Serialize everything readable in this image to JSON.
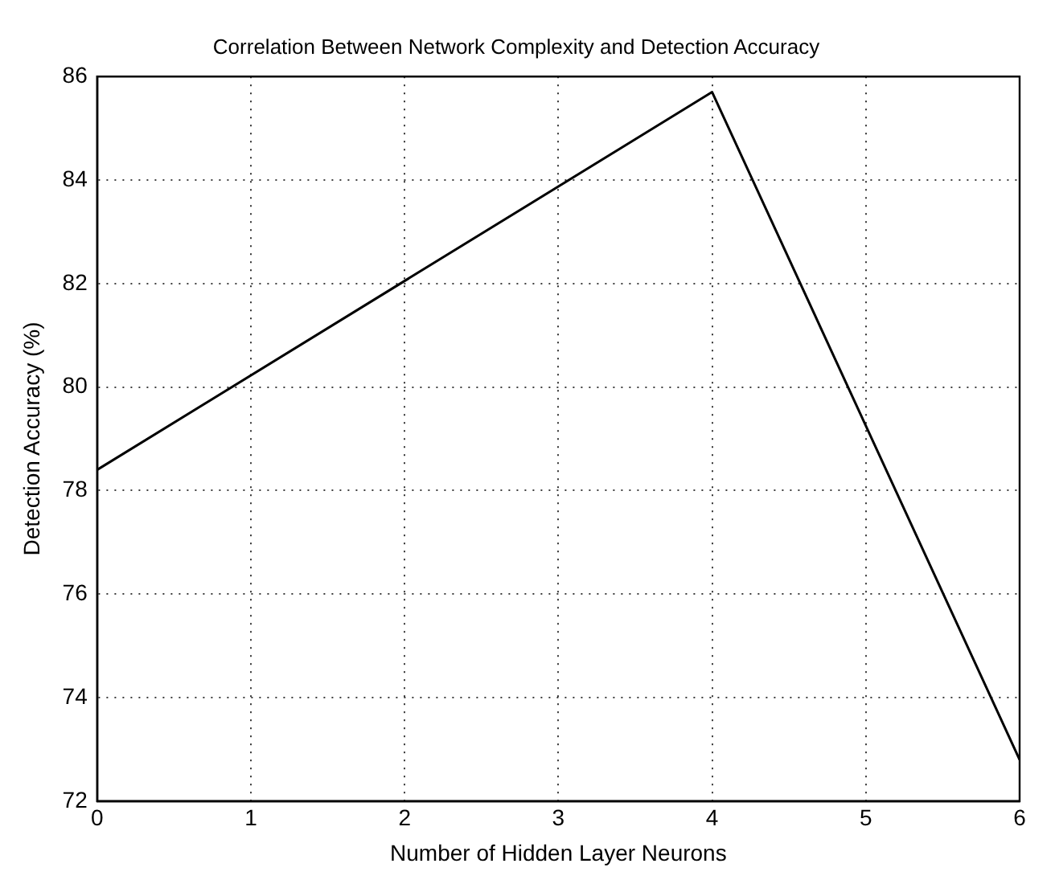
{
  "chart_data": {
    "type": "line",
    "title": "Correlation Between Network Complexity and Detection Accuracy",
    "xlabel": "Number of Hidden Layer Neurons",
    "ylabel": "Detection Accuracy (%)",
    "x": [
      0,
      4,
      6
    ],
    "series": [
      {
        "color": "#000000",
        "values": [
          78.4,
          85.7,
          72.8
        ]
      }
    ],
    "xlim": [
      0,
      6
    ],
    "xticks": [
      0,
      1,
      2,
      3,
      4,
      5,
      6
    ],
    "ylim": [
      72,
      86
    ],
    "yticks": [
      72,
      74,
      76,
      78,
      80,
      82,
      84,
      86
    ],
    "grid": true,
    "legend": false,
    "marker": "none",
    "line_style": "solid"
  }
}
